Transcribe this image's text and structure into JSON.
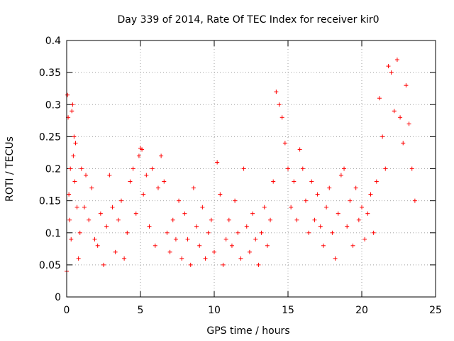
{
  "chart_data": {
    "type": "scatter",
    "title": "Day 339 of 2014, Rate Of TEC Index for receiver kir0",
    "xlabel": "GPS time / hours",
    "ylabel": "ROTI / TECUs",
    "xlim": [
      0,
      25
    ],
    "ylim": [
      0,
      0.4
    ],
    "x_ticks": [
      "0",
      "5",
      "10",
      "15",
      "20",
      "25"
    ],
    "y_ticks": [
      "0",
      "0.05",
      "0.1",
      "0.15",
      "0.2",
      "0.25",
      "0.3",
      "0.35",
      "0.4"
    ],
    "grid": true,
    "marker": "+",
    "color": "#ff0000",
    "series": [
      {
        "points": [
          [
            0.0,
            0.04
          ],
          [
            0.05,
            0.315
          ],
          [
            0.1,
            0.28
          ],
          [
            0.15,
            0.16
          ],
          [
            0.2,
            0.12
          ],
          [
            0.25,
            0.2
          ],
          [
            0.3,
            0.09
          ],
          [
            0.35,
            0.29
          ],
          [
            0.4,
            0.3
          ],
          [
            0.45,
            0.22
          ],
          [
            0.5,
            0.25
          ],
          [
            0.55,
            0.18
          ],
          [
            0.6,
            0.24
          ],
          [
            0.7,
            0.14
          ],
          [
            0.8,
            0.06
          ],
          [
            0.9,
            0.1
          ],
          [
            1.0,
            0.2
          ],
          [
            1.2,
            0.14
          ],
          [
            1.3,
            0.19
          ],
          [
            1.5,
            0.12
          ],
          [
            1.7,
            0.17
          ],
          [
            1.9,
            0.09
          ],
          [
            2.1,
            0.08
          ],
          [
            2.3,
            0.13
          ],
          [
            2.5,
            0.05
          ],
          [
            2.7,
            0.11
          ],
          [
            2.9,
            0.19
          ],
          [
            3.1,
            0.14
          ],
          [
            3.3,
            0.07
          ],
          [
            3.5,
            0.12
          ],
          [
            3.7,
            0.15
          ],
          [
            3.9,
            0.06
          ],
          [
            4.1,
            0.1
          ],
          [
            4.3,
            0.18
          ],
          [
            4.5,
            0.2
          ],
          [
            4.7,
            0.13
          ],
          [
            4.9,
            0.22
          ],
          [
            5.0,
            0.232
          ],
          [
            5.1,
            0.23
          ],
          [
            5.2,
            0.16
          ],
          [
            5.4,
            0.19
          ],
          [
            5.6,
            0.11
          ],
          [
            5.8,
            0.2
          ],
          [
            6.0,
            0.08
          ],
          [
            6.2,
            0.17
          ],
          [
            6.4,
            0.22
          ],
          [
            6.6,
            0.18
          ],
          [
            6.8,
            0.1
          ],
          [
            7.0,
            0.07
          ],
          [
            7.2,
            0.12
          ],
          [
            7.4,
            0.09
          ],
          [
            7.6,
            0.15
          ],
          [
            7.8,
            0.06
          ],
          [
            8.0,
            0.13
          ],
          [
            8.2,
            0.09
          ],
          [
            8.4,
            0.05
          ],
          [
            8.6,
            0.17
          ],
          [
            8.8,
            0.11
          ],
          [
            9.0,
            0.08
          ],
          [
            9.2,
            0.14
          ],
          [
            9.4,
            0.06
          ],
          [
            9.6,
            0.1
          ],
          [
            9.8,
            0.12
          ],
          [
            10.0,
            0.07
          ],
          [
            10.2,
            0.21
          ],
          [
            10.4,
            0.16
          ],
          [
            10.6,
            0.05
          ],
          [
            10.8,
            0.09
          ],
          [
            11.0,
            0.12
          ],
          [
            11.2,
            0.08
          ],
          [
            11.4,
            0.15
          ],
          [
            11.6,
            0.1
          ],
          [
            11.8,
            0.06
          ],
          [
            12.0,
            0.2
          ],
          [
            12.2,
            0.11
          ],
          [
            12.4,
            0.07
          ],
          [
            12.6,
            0.13
          ],
          [
            12.8,
            0.09
          ],
          [
            13.0,
            0.05
          ],
          [
            13.2,
            0.1
          ],
          [
            13.4,
            0.14
          ],
          [
            13.6,
            0.08
          ],
          [
            13.8,
            0.12
          ],
          [
            14.0,
            0.18
          ],
          [
            14.2,
            0.32
          ],
          [
            14.4,
            0.3
          ],
          [
            14.6,
            0.28
          ],
          [
            14.8,
            0.24
          ],
          [
            15.0,
            0.2
          ],
          [
            15.2,
            0.14
          ],
          [
            15.4,
            0.18
          ],
          [
            15.6,
            0.12
          ],
          [
            15.8,
            0.23
          ],
          [
            16.0,
            0.2
          ],
          [
            16.2,
            0.15
          ],
          [
            16.4,
            0.1
          ],
          [
            16.6,
            0.18
          ],
          [
            16.8,
            0.12
          ],
          [
            17.0,
            0.16
          ],
          [
            17.2,
            0.11
          ],
          [
            17.4,
            0.08
          ],
          [
            17.6,
            0.14
          ],
          [
            17.8,
            0.17
          ],
          [
            18.0,
            0.1
          ],
          [
            18.2,
            0.06
          ],
          [
            18.4,
            0.13
          ],
          [
            18.6,
            0.19
          ],
          [
            18.8,
            0.2
          ],
          [
            19.0,
            0.11
          ],
          [
            19.2,
            0.15
          ],
          [
            19.4,
            0.08
          ],
          [
            19.6,
            0.17
          ],
          [
            19.8,
            0.12
          ],
          [
            20.0,
            0.14
          ],
          [
            20.2,
            0.09
          ],
          [
            20.4,
            0.13
          ],
          [
            20.6,
            0.16
          ],
          [
            20.8,
            0.1
          ],
          [
            21.0,
            0.18
          ],
          [
            21.2,
            0.31
          ],
          [
            21.4,
            0.25
          ],
          [
            21.6,
            0.2
          ],
          [
            21.8,
            0.36
          ],
          [
            22.0,
            0.35
          ],
          [
            22.2,
            0.29
          ],
          [
            22.4,
            0.37
          ],
          [
            22.6,
            0.28
          ],
          [
            22.8,
            0.24
          ],
          [
            23.0,
            0.33
          ],
          [
            23.2,
            0.27
          ],
          [
            23.4,
            0.2
          ],
          [
            23.6,
            0.15
          ]
        ]
      }
    ]
  }
}
